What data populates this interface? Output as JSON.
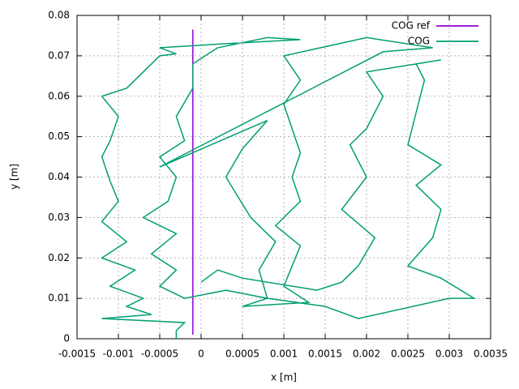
{
  "chart_data": {
    "type": "line",
    "xlabel": "x [m]",
    "ylabel": "y [m]",
    "xlim": [
      -0.0015,
      0.0035
    ],
    "ylim": [
      0,
      0.08
    ],
    "xticks": [
      -0.0015,
      -0.001,
      -0.0005,
      0,
      0.0005,
      0.001,
      0.0015,
      0.002,
      0.0025,
      0.003,
      0.0035
    ],
    "yticks": [
      0,
      0.01,
      0.02,
      0.03,
      0.04,
      0.05,
      0.06,
      0.07,
      0.08
    ],
    "grid": true,
    "legend": "top-right",
    "series": [
      {
        "name": "COG ref",
        "color": "#9400d3",
        "x": [
          -0.0001,
          -0.0001
        ],
        "values": [
          0.001,
          0.0765
        ]
      },
      {
        "name": "COG",
        "color": "#009e73",
        "x": [
          -0.0003,
          -0.0003,
          -0.0002,
          -0.0012,
          -0.0006,
          -0.0009,
          -0.0007,
          -0.0011,
          -0.0008,
          -0.0012,
          -0.0009,
          -0.0012,
          -0.001,
          -0.0011,
          -0.0012,
          -0.0011,
          -0.001,
          -0.0012,
          -0.0009,
          -0.0007,
          -0.0005,
          -0.0003,
          -0.0005,
          0.0003,
          0.0012,
          0.0008,
          0.0002,
          -0.0001,
          -0.0001,
          -0.0003,
          -0.0002,
          -0.0005,
          -0.0003,
          -0.0004,
          -0.0007,
          -0.0003,
          -0.0006,
          -0.0003,
          -0.0005,
          -0.0002,
          0.0003,
          0.0008,
          0.0005,
          0.0013,
          0.001,
          0.0011,
          0.0012,
          0.0009,
          0.0012,
          0.0011,
          0.0012,
          0.0011,
          0.001,
          0.0012,
          0.001,
          0.002,
          0.0028,
          0.0022,
          -0.0005,
          0.0008,
          0.0005,
          0.0003,
          0.0006,
          0.0009,
          0.0007,
          0.0008,
          0.0015,
          0.0019,
          0.003,
          0.0033,
          0.0029,
          0.0025,
          0.0028,
          0.0029,
          0.0026,
          0.0029,
          0.0025,
          0.0026,
          0.0027,
          0.0026,
          0.0029,
          0.002,
          0.0022,
          0.002,
          0.0018,
          0.002,
          0.0017,
          0.0021,
          0.0019,
          0.0017,
          0.0014,
          0.0005,
          0.0002,
          0
        ],
        "values": [
          0,
          0.002,
          0.004,
          0.005,
          0.006,
          0.008,
          0.01,
          0.013,
          0.017,
          0.02,
          0.024,
          0.029,
          0.034,
          0.039,
          0.045,
          0.049,
          0.055,
          0.06,
          0.062,
          0.066,
          0.07,
          0.0705,
          0.072,
          0.073,
          0.074,
          0.0745,
          0.072,
          0.068,
          0.062,
          0.055,
          0.049,
          0.045,
          0.04,
          0.034,
          0.03,
          0.026,
          0.021,
          0.017,
          0.013,
          0.01,
          0.012,
          0.01,
          0.008,
          0.009,
          0.013,
          0.018,
          0.023,
          0.028,
          0.034,
          0.04,
          0.046,
          0.052,
          0.058,
          0.064,
          0.07,
          0.0745,
          0.072,
          0.071,
          0.0425,
          0.054,
          0.047,
          0.04,
          0.03,
          0.024,
          0.017,
          0.01,
          0.008,
          0.005,
          0.01,
          0.01,
          0.015,
          0.018,
          0.025,
          0.032,
          0.038,
          0.043,
          0.048,
          0.056,
          0.064,
          0.068,
          0.069,
          0.066,
          0.06,
          0.052,
          0.048,
          0.04,
          0.032,
          0.025,
          0.018,
          0.014,
          0.012,
          0.015,
          0.017,
          0.014
        ]
      }
    ]
  }
}
